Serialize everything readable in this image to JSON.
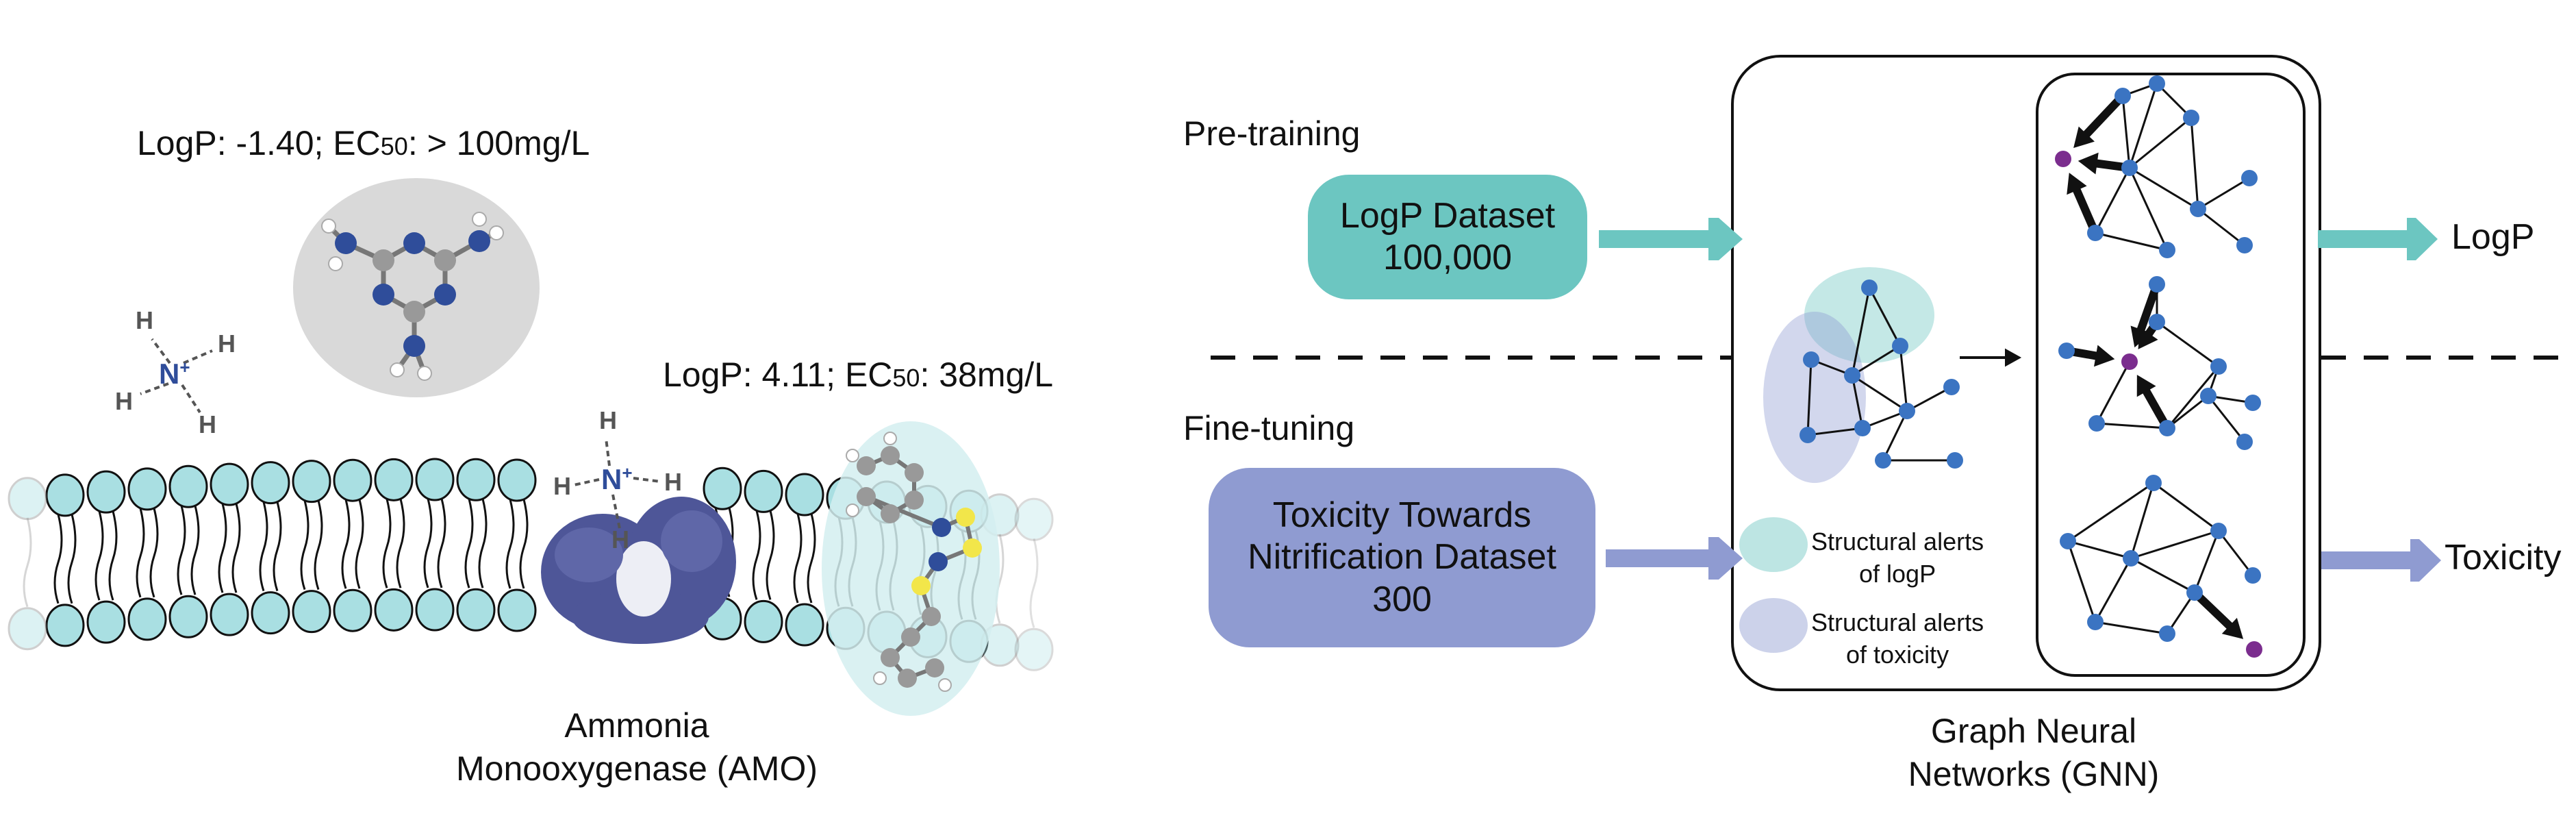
{
  "colors": {
    "teal": "#6cc6c1",
    "lavender": "#8f9bd1",
    "lipid_head": "#a9dfe2",
    "node_blue": "#3b74c2",
    "node_purple": "#7b2d8e",
    "protein": "#4e5698",
    "nitrogen": "#2f4d9a",
    "sulfur": "#f2e64a",
    "grey_blob": "#d9d9d9"
  },
  "left": {
    "molecule1_label_pre": "LogP: -1.40; EC",
    "molecule1_label_sub": "50",
    "molecule1_label_post": ": > 100mg/L",
    "molecule2_label_pre": "LogP: 4.11; EC",
    "molecule2_label_sub": "50",
    "molecule2_label_post": ": 38mg/L",
    "ammonium_center": "N",
    "ammonium_charge": "+",
    "hydrogen": "H",
    "enzyme_line1": "Ammonia",
    "enzyme_line2": "Monooxygenase (AMO)"
  },
  "right": {
    "pretraining_label": "Pre-training",
    "finetuning_label": "Fine-tuning",
    "logp_dataset_line1": "LogP Dataset",
    "logp_dataset_line2": "100,000",
    "tox_dataset_line1": "Toxicity Towards",
    "tox_dataset_line2": "Nitrification Dataset",
    "tox_dataset_line3": "300",
    "legend_logp_line1": "Structural alerts",
    "legend_logp_line2": "of logP",
    "legend_tox_line1": "Structural alerts",
    "legend_tox_line2": "of toxicity",
    "output_logp": "LogP",
    "output_toxicity": "Toxicity",
    "gnn_line1": "Graph Neural",
    "gnn_line2": "Networks (GNN)"
  }
}
